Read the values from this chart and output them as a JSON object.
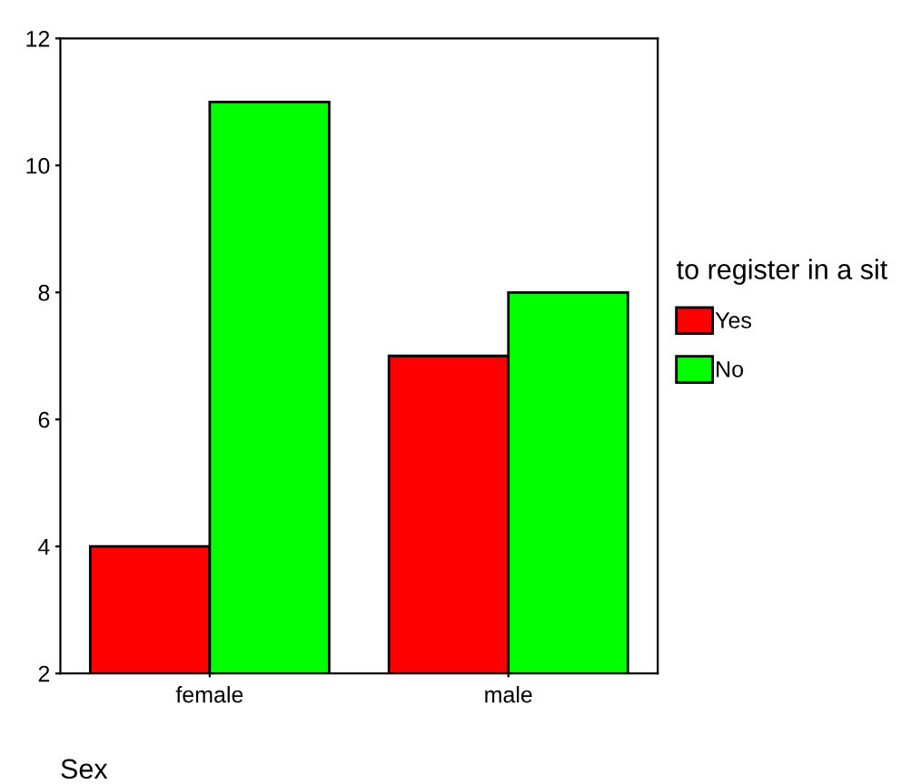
{
  "chart_data": {
    "type": "bar",
    "categories": [
      "female",
      "male"
    ],
    "xlabel": "Sex",
    "legend_title": "to register in a sit",
    "series": [
      {
        "name": "Yes",
        "color": "#ff0000",
        "values": [
          4,
          7
        ]
      },
      {
        "name": "No",
        "color": "#00ff00",
        "values": [
          11,
          8
        ]
      }
    ],
    "ylim": [
      2,
      12
    ],
    "yticks": [
      2,
      4,
      6,
      8,
      10,
      12
    ],
    "grid": false,
    "legend": "right"
  }
}
